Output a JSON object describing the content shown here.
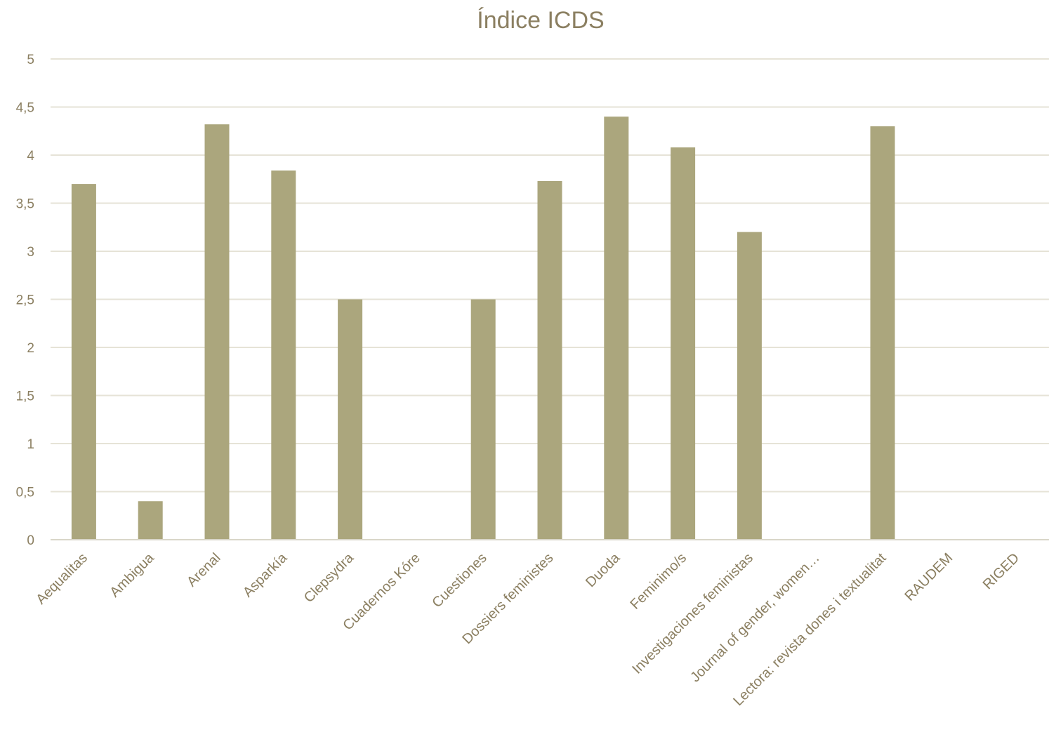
{
  "colors": {
    "bar": "#aba67d",
    "text": "#8b7f61",
    "grid": "#e6e3d7",
    "axis": "#d9d6c9"
  },
  "chart_data": {
    "type": "bar",
    "title": "Índice ICDS",
    "xlabel": "",
    "ylabel": "",
    "ylim": [
      0,
      5
    ],
    "grid": true,
    "y_ticks": [
      "0",
      "0,5",
      "1",
      "1,5",
      "2",
      "2,5",
      "3",
      "3,5",
      "4",
      "4,5",
      "5"
    ],
    "categories": [
      "Aequalitas",
      "Ambigua",
      "Arenal",
      "Asparkía",
      "Clepsydra",
      "Cuadernos Kóre",
      "Cuestiones",
      "Dossiers feministes",
      "Duoda",
      "Feminimo/s",
      "Investigaciones feministas",
      "Journal of gender, women…",
      "Lectora: revista dones i textualitat",
      "RAUDEM",
      "RIGED"
    ],
    "values": [
      3.7,
      0.4,
      4.32,
      3.84,
      2.5,
      0,
      2.5,
      3.73,
      4.4,
      4.08,
      3.2,
      0,
      4.3,
      0,
      0
    ]
  }
}
